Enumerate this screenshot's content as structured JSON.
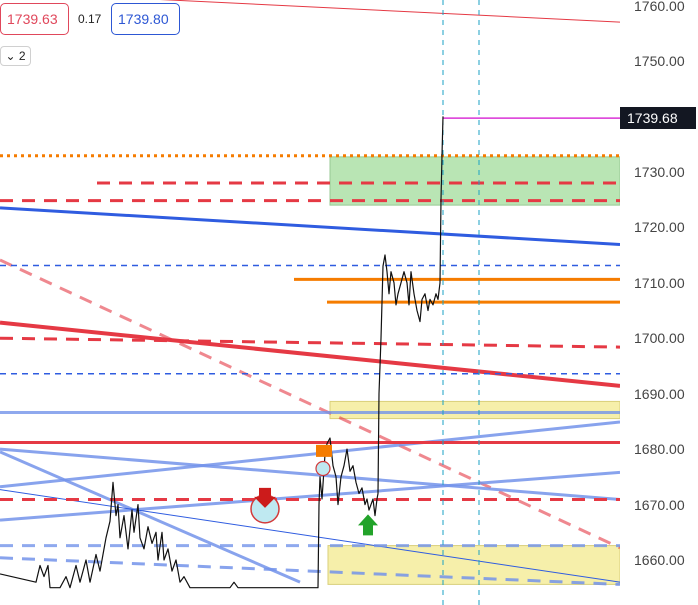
{
  "header": {
    "bid_price": "1739.63",
    "spread": "0.17",
    "ask_price": "1739.80",
    "collapse_label": "⌄ 2"
  },
  "colors": {
    "bid": "#e0475b",
    "ask": "#2d57d4",
    "last_price_bg": "#131722",
    "magenta": "#d933d6",
    "green_zone": "#b9e5b4",
    "yellow_zone": "#f6efaa",
    "orange": "#f57c00",
    "red": "#e53944",
    "blue": "#2f5ce0"
  },
  "last_price": {
    "label": "1739.68",
    "value": 1739.68
  },
  "chart_data": {
    "type": "line",
    "title": "",
    "xlabel": "",
    "ylabel": "",
    "ylim": [
      1655.6,
      1765.0
    ],
    "grid": false,
    "y_ticks": [
      {
        "value": 1760,
        "label": "1760.00"
      },
      {
        "value": 1750,
        "label": "1750.00"
      },
      {
        "value": 1730,
        "label": "1730.00"
      },
      {
        "value": 1720,
        "label": "1720.00"
      },
      {
        "value": 1710,
        "label": "1710.00"
      },
      {
        "value": 1700,
        "label": "1700.00"
      },
      {
        "value": 1690,
        "label": "1690.00"
      },
      {
        "value": 1680,
        "label": "1680.00"
      },
      {
        "value": 1670,
        "label": "1670.00"
      },
      {
        "value": 1660,
        "label": "1660.00"
      }
    ],
    "price_series": [
      [
        1655,
        1657.5
      ],
      [
        36,
        1656
      ],
      [
        40,
        1659
      ],
      [
        44,
        1657
      ],
      [
        48,
        1659
      ],
      [
        50,
        1655
      ],
      [
        60,
        1655
      ],
      [
        66,
        1657
      ],
      [
        70,
        1655
      ],
      [
        76,
        1659
      ],
      [
        80,
        1656
      ],
      [
        86,
        1660
      ],
      [
        90,
        1656
      ],
      [
        96,
        1661
      ],
      [
        100,
        1658
      ],
      [
        104,
        1662
      ],
      [
        106,
        1664
      ],
      [
        110,
        1667
      ],
      [
        113,
        1674
      ],
      [
        116,
        1668
      ],
      [
        118,
        1670
      ],
      [
        120,
        1664
      ],
      [
        124,
        1668
      ],
      [
        128,
        1662
      ],
      [
        132,
        1669
      ],
      [
        134,
        1665
      ],
      [
        138,
        1670
      ],
      [
        140,
        1664
      ],
      [
        144,
        1662
      ],
      [
        148,
        1666
      ],
      [
        152,
        1663
      ],
      [
        156,
        1665
      ],
      [
        158,
        1660
      ],
      [
        162,
        1665
      ],
      [
        164,
        1660
      ],
      [
        168,
        1662
      ],
      [
        172,
        1658
      ],
      [
        176,
        1660
      ],
      [
        180,
        1656
      ],
      [
        184,
        1657
      ],
      [
        190,
        1655
      ],
      [
        230,
        1655
      ],
      [
        234,
        1656
      ],
      [
        238,
        1655
      ],
      [
        318,
        1655
      ],
      [
        319,
        1670
      ],
      [
        320,
        1675
      ],
      [
        322,
        1671
      ],
      [
        325,
        1679
      ],
      [
        327,
        1681
      ],
      [
        330,
        1682
      ],
      [
        333,
        1677
      ],
      [
        336,
        1675
      ],
      [
        338,
        1670
      ],
      [
        341,
        1675
      ],
      [
        344,
        1677
      ],
      [
        347,
        1680
      ],
      [
        350,
        1676
      ],
      [
        353,
        1677
      ],
      [
        356,
        1674
      ],
      [
        359,
        1672
      ],
      [
        362,
        1673
      ],
      [
        365,
        1670
      ],
      [
        367,
        1671
      ],
      [
        369,
        1669
      ],
      [
        371,
        1670
      ],
      [
        373,
        1671
      ],
      [
        375,
        1668
      ],
      [
        377,
        1671
      ],
      [
        378,
        1672
      ],
      [
        379,
        1690
      ],
      [
        381,
        1700
      ],
      [
        383,
        1713
      ],
      [
        385,
        1715
      ],
      [
        387,
        1712
      ],
      [
        389,
        1708
      ],
      [
        391,
        1712
      ],
      [
        394,
        1710
      ],
      [
        396,
        1706
      ],
      [
        398,
        1708
      ],
      [
        401,
        1710
      ],
      [
        404,
        1712
      ],
      [
        407,
        1710
      ],
      [
        409,
        1706
      ],
      [
        411,
        1712
      ],
      [
        414,
        1708
      ],
      [
        417,
        1705
      ],
      [
        420,
        1703
      ],
      [
        422,
        1707
      ],
      [
        425,
        1708
      ],
      [
        428,
        1705
      ],
      [
        430,
        1707
      ],
      [
        433,
        1706
      ],
      [
        436,
        1708
      ],
      [
        438,
        1707
      ],
      [
        440,
        1710
      ],
      [
        441,
        1725
      ],
      [
        442,
        1733
      ],
      [
        443,
        1740
      ]
    ],
    "price_series_x_units": "note: first pair holds start-x 0; x values are horizontal bar offsets",
    "zones": [
      {
        "kind": "demand",
        "color": "green",
        "from": 1724.0,
        "to": 1732.7,
        "x_start": 330
      },
      {
        "kind": "supply",
        "color": "yellow",
        "from": 1685.5,
        "to": 1688.6,
        "x_start": 330
      },
      {
        "kind": "supply",
        "color": "yellow",
        "from": 1655.6,
        "to": 1662.6,
        "x_start": 328
      }
    ],
    "horizontal_levels": [
      {
        "value": 1732.9,
        "color": "orange",
        "style": "dotted"
      },
      {
        "value": 1728.0,
        "color": "red",
        "style": "dashed",
        "x_start": 97
      },
      {
        "value": 1724.8,
        "color": "red",
        "style": "dashed"
      },
      {
        "value": 1713.1,
        "color": "blue",
        "style": "thin-dashed"
      },
      {
        "value": 1710.6,
        "color": "orange",
        "style": "solid",
        "x_start": 294
      },
      {
        "value": 1706.5,
        "color": "orange",
        "style": "solid",
        "x_start": 327
      },
      {
        "value": 1693.6,
        "color": "blue",
        "style": "thin-dashed"
      },
      {
        "value": 1686.6,
        "color": "lightblue",
        "style": "solid"
      },
      {
        "value": 1681.2,
        "color": "red",
        "style": "solid"
      },
      {
        "value": 1670.9,
        "color": "red",
        "style": "dashed"
      },
      {
        "value": 1662.6,
        "color": "lightblue",
        "style": "dashed"
      },
      {
        "value": 1739.68,
        "color": "magenta",
        "style": "solid",
        "x_start": 443
      }
    ],
    "trend_lines": [
      {
        "from": [
          0,
          1723.5
        ],
        "to": [
          620,
          1716.9
        ],
        "color": "blue",
        "width": 3
      },
      {
        "from": [
          0,
          1702.8
        ],
        "to": [
          620,
          1691.4
        ],
        "color": "red",
        "width": 4
      },
      {
        "from": [
          0,
          1700.0
        ],
        "to": [
          620,
          1698.4
        ],
        "color": "red",
        "width": 3,
        "style": "dashed"
      },
      {
        "from": [
          0,
          1762.5
        ],
        "to": [
          620,
          1757.0
        ],
        "color": "red",
        "width": 1
      },
      {
        "from": [
          0,
          1714.1
        ],
        "to": [
          620,
          1662.2
        ],
        "color": "red",
        "width": 3,
        "style": "dashed",
        "opacity": 0.6
      },
      {
        "from": [
          0,
          1673.2
        ],
        "to": [
          620,
          1684.9
        ],
        "color": "lightblue",
        "width": 3
      },
      {
        "from": [
          0,
          1667.2
        ],
        "to": [
          620,
          1675.8
        ],
        "color": "lightblue",
        "width": 3
      },
      {
        "from": [
          0,
          1680.0
        ],
        "to": [
          620,
          1670.9
        ],
        "color": "lightblue",
        "width": 3
      },
      {
        "from": [
          0,
          1679.5
        ],
        "to": [
          300,
          1656.0
        ],
        "color": "lightblue",
        "width": 3
      },
      {
        "from": [
          0,
          1672.7
        ],
        "to": [
          620,
          1656.0
        ],
        "color": "blue",
        "width": 1
      },
      {
        "from": [
          0,
          1660.4
        ],
        "to": [
          620,
          1655.6
        ],
        "color": "lightblue",
        "width": 3,
        "style": "dashed"
      }
    ],
    "vertical_markers": [
      {
        "x": 443
      },
      {
        "x": 479
      }
    ],
    "signals": [
      {
        "kind": "sell",
        "x": 265,
        "value": 1669.4
      },
      {
        "kind": "circle",
        "x": 323,
        "value": 1676.5
      },
      {
        "kind": "square",
        "x": 324,
        "value": 1679.5
      },
      {
        "kind": "buy",
        "x": 368,
        "value": 1666.6
      }
    ]
  }
}
